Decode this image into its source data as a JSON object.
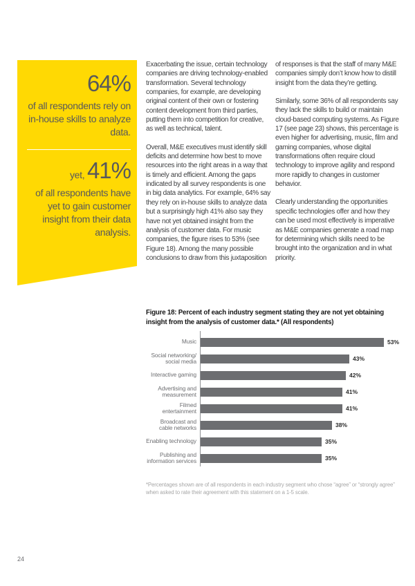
{
  "page": {
    "number": "24"
  },
  "callout": {
    "background": "#FFD903",
    "text_color": "#58595B",
    "stat1_value": "64%",
    "stat1_text": "of all respondents rely on in-house skills to analyze data.",
    "stat2_prefix": "yet, ",
    "stat2_value": "41%",
    "stat2_text": "of all respondents have yet to gain customer insight from their data analysis."
  },
  "columns": {
    "col1": [
      "Exacerbating the issue, certain technology companies are driving technology-enabled transformation. Several technology companies, for example, are developing original content of their own or fostering content development from third parties, putting them into competition for creative, as well as technical, talent.",
      "Overall, M&E executives must identify skill deficits and determine how best to move resources into the right areas in a way that is timely and efficient. Among the gaps indicated by all survey respondents is one in big data analytics. For example, 64% say they rely on in-house skills to analyze data but a surprisingly high 41% also say they have not yet obtained insight from the analysis of customer data. For music companies, the figure rises to 53% (see Figure 18). Among the many possible conclusions to draw from this juxtaposition"
    ],
    "col2": [
      "of responses is that the staff of many M&E companies simply don’t know how to distill insight from the data they’re getting.",
      "Similarly, some 36% of all respondents say they lack the skills to build or maintain cloud-based computing systems. As Figure 17 (see page 23) shows, this percentage is even higher for advertising, music, film and gaming companies, whose digital transformations often require cloud technology to improve agility and respond more rapidly to changes in customer behavior.",
      "Clearly understanding the opportunities specific technologies offer and how they can be used most effectively is imperative as M&E companies generate a road map for determining which skills need to be brought into the organization and in what priority."
    ]
  },
  "figure": {
    "label": "Figure 18:",
    "caption": "Percent of each industry segment stating they are not yet obtaining insight from the analysis of customer data.* (All respondents)",
    "footnote": "*Percentages shown are of all respondents in each industry segment who chose “agree” or “strongly agree” when asked to rate their agreement with this statement on a 1-5 scale."
  },
  "chart_data": {
    "type": "bar",
    "orientation": "horizontal",
    "title": "Figure 18: Percent of each industry segment stating they are not yet obtaining insight from the analysis of customer data.* (All respondents)",
    "categories": [
      [
        "Music"
      ],
      [
        "Social networking/",
        "social media"
      ],
      [
        "Interactive gaming"
      ],
      [
        "Advertising and",
        "measurement"
      ],
      [
        "Filmed entertainment"
      ],
      [
        "Broadcast and",
        "cable networks"
      ],
      [
        "Enabling technology"
      ],
      [
        "Publishing and",
        "information services"
      ]
    ],
    "values": [
      53,
      43,
      42,
      41,
      41,
      38,
      35,
      35
    ],
    "value_labels": [
      "53%",
      "43%",
      "42%",
      "41%",
      "41%",
      "38%",
      "35%",
      "35%"
    ],
    "xlim": [
      0,
      60
    ],
    "grid": false,
    "legend": false,
    "bar_color": "#6D6E71",
    "label_color": "#6D6E71"
  }
}
